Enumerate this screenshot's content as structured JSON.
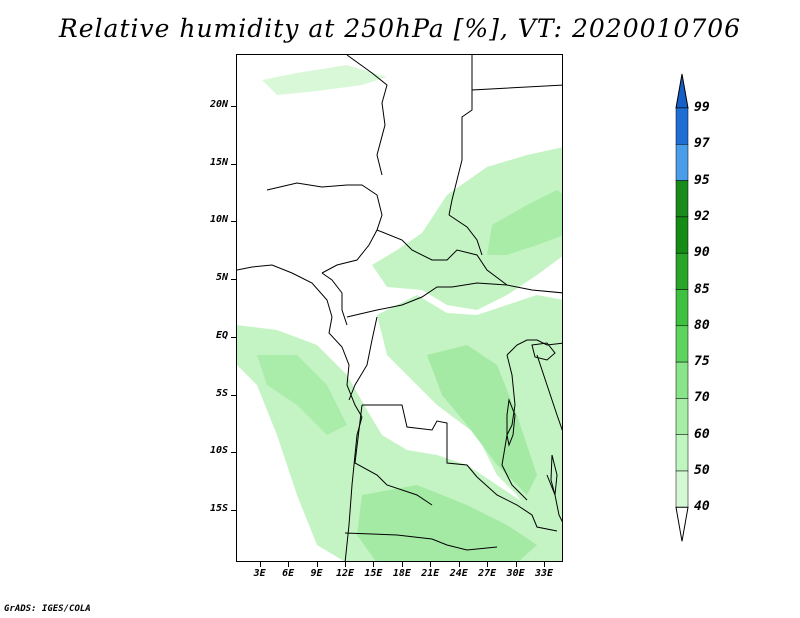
{
  "title": "Relative humidity at 250hPa [%], VT: 2020010706",
  "credit": "GrADS: IGES/COLA",
  "lat_labels": [
    "20N",
    "15N",
    "10N",
    "5N",
    "EQ",
    "5S",
    "10S",
    "15S"
  ],
  "lat_values": [
    20,
    15,
    10,
    5,
    0,
    -5,
    -10,
    -15
  ],
  "lon_labels": [
    "3E",
    "6E",
    "9E",
    "12E",
    "15E",
    "18E",
    "21E",
    "24E",
    "27E",
    "30E",
    "33E"
  ],
  "lon_values": [
    3,
    6,
    9,
    12,
    15,
    18,
    21,
    24,
    27,
    30,
    33
  ],
  "map_extent": {
    "lon": [
      0.5,
      35
    ],
    "lat": [
      -19.5,
      24.5
    ]
  },
  "colorbar": {
    "levels": [
      "40",
      "50",
      "60",
      "70",
      "75",
      "80",
      "85",
      "90",
      "92",
      "95",
      "97",
      "99"
    ],
    "colors": [
      "#f0fdf0",
      "#d4f8d4",
      "#bff5bf",
      "#a6eea6",
      "#8ae48a",
      "#5dd45d",
      "#40c040",
      "#2aa52a",
      "#158c15",
      "#1a8a1a",
      "#4a9de8",
      "#1e6ed4",
      "#1560c8"
    ]
  },
  "colors": {
    "land_border": "#000000",
    "humid_light": "#c8f5c8",
    "humid_mid": "#a8eca8"
  }
}
